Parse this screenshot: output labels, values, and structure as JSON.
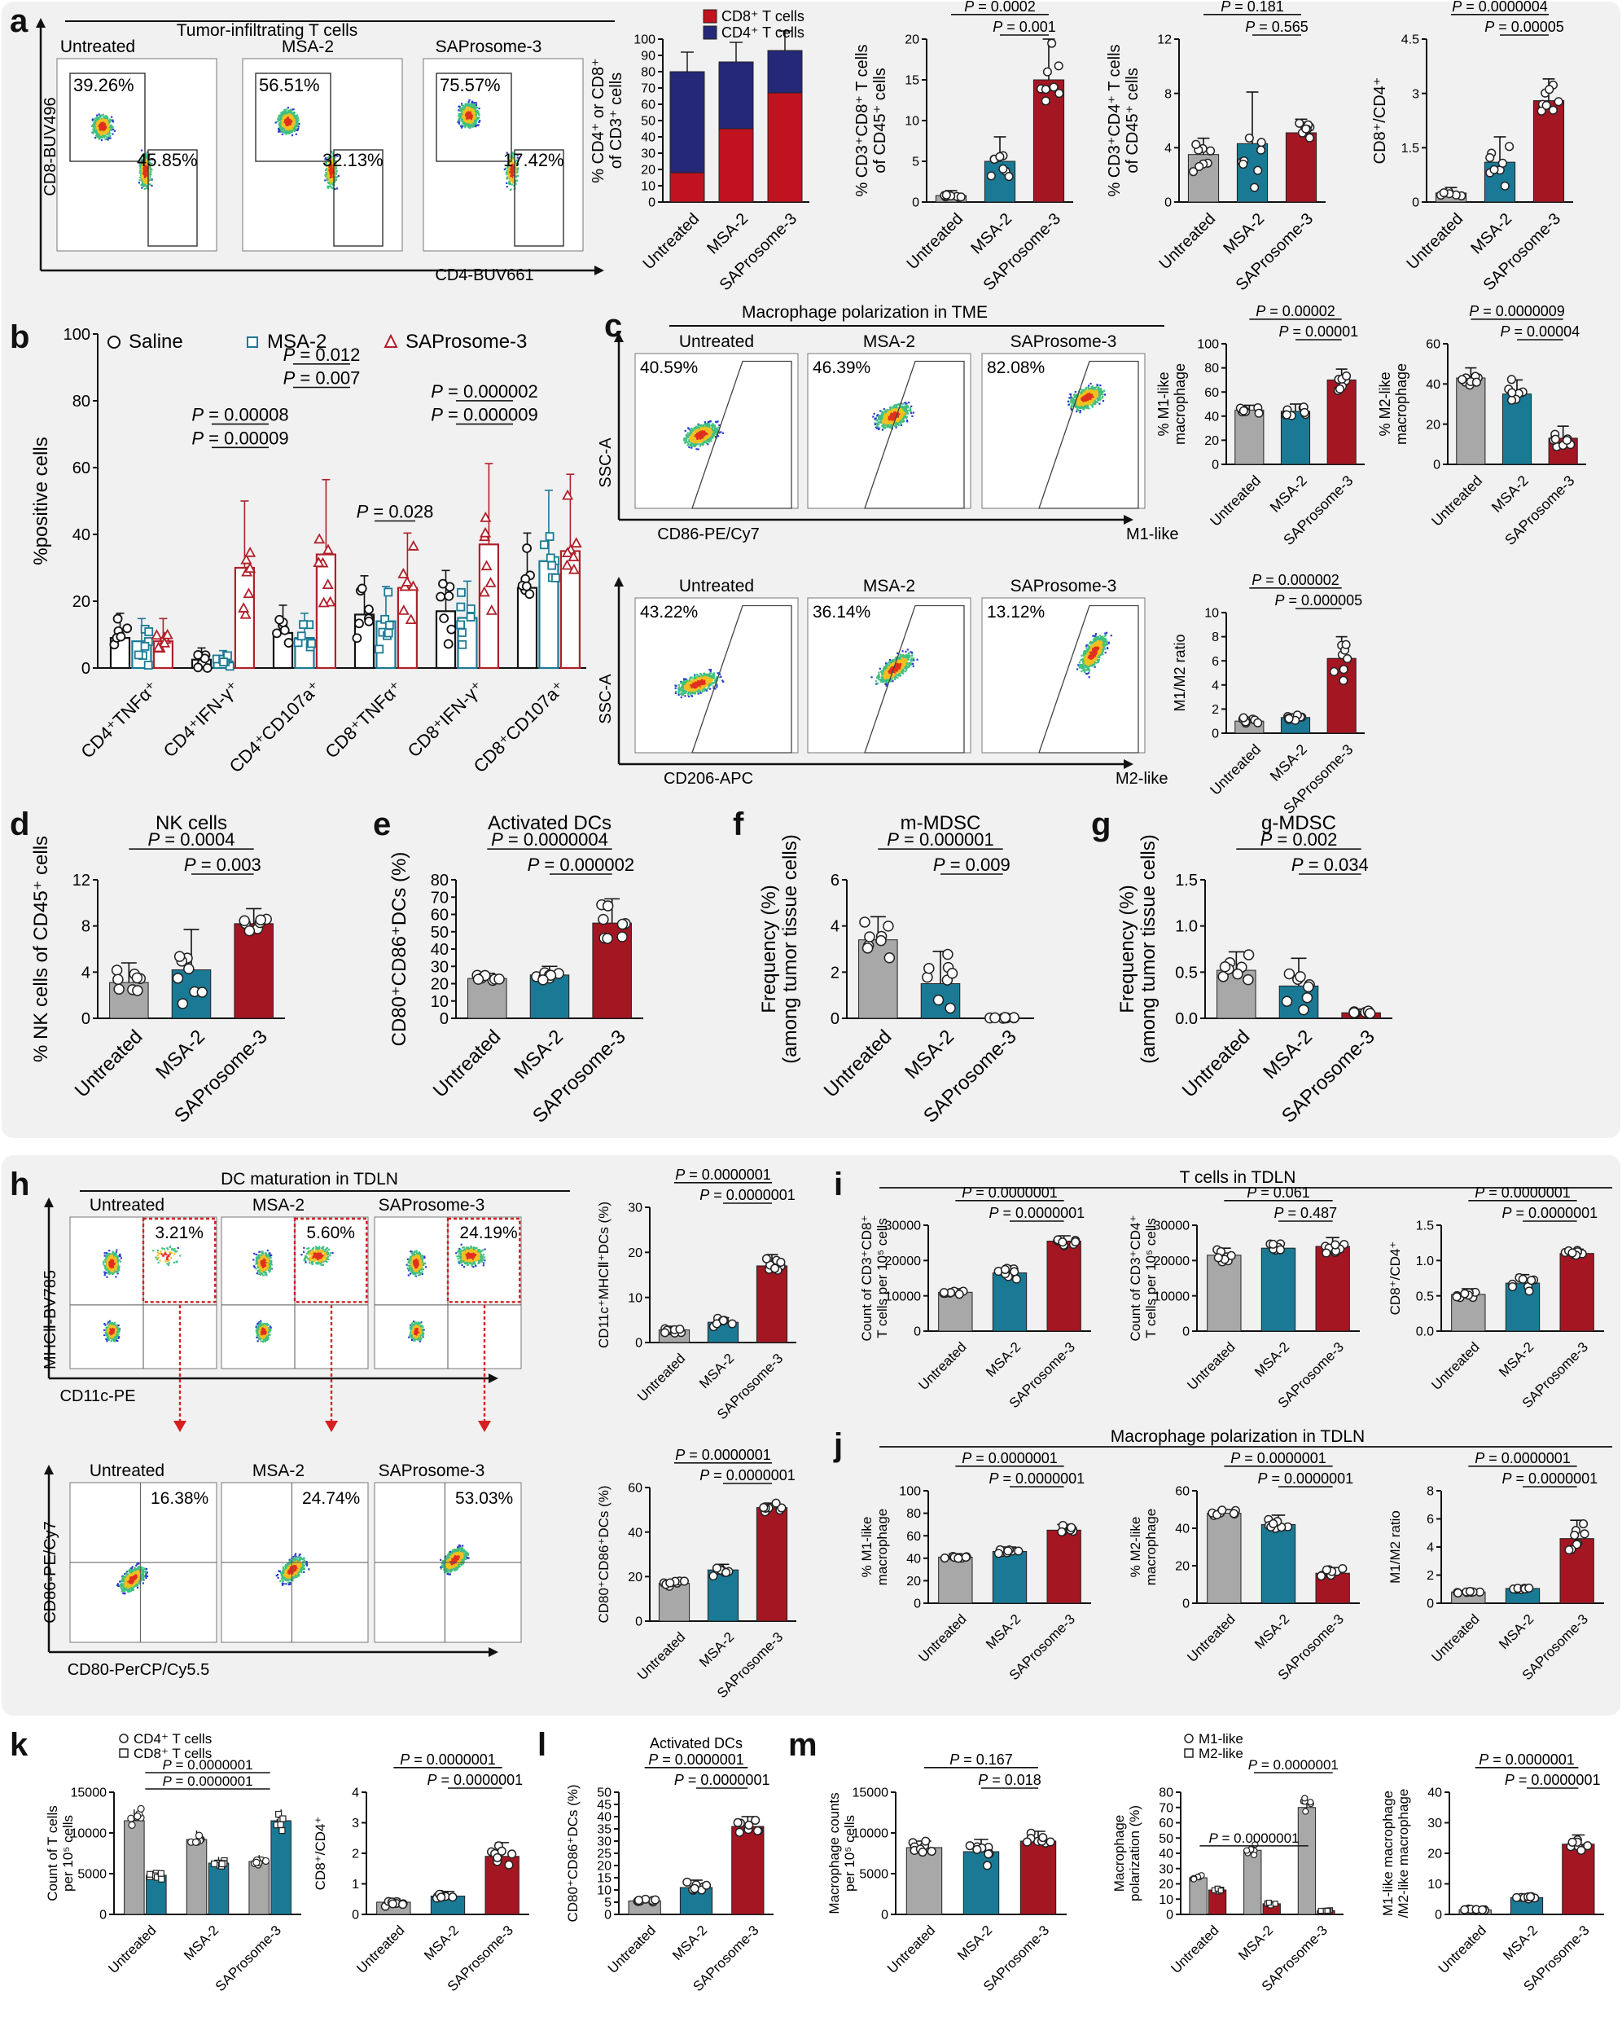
{
  "figure": {
    "letters": [
      "a",
      "b",
      "c",
      "d",
      "e",
      "f",
      "g",
      "h",
      "i",
      "j",
      "k",
      "l",
      "m"
    ]
  },
  "colors": {
    "untreated": "#a8a8a8",
    "msa2": "#1a7a96",
    "saprosome": "#a41622",
    "cd8_bar": "#c0121f",
    "cd4_bar": "#252777",
    "saline_pt": "#111111",
    "msa2_pt": "#1a7a96",
    "sap_pt": "#b0202a"
  },
  "groups": [
    "Untreated",
    "MSA-2",
    "SAProsome-3"
  ],
  "flow": {
    "a_title": "Tumor-infiltrating T cells",
    "a_xlabel": "CD4-BUV661",
    "a_ylabel": "CD8-BUV496",
    "a_plots": [
      {
        "name": "Untreated",
        "gate1": "39.26%",
        "gate2": "45.85%"
      },
      {
        "name": "MSA-2",
        "gate1": "56.51%",
        "gate2": "32.13%"
      },
      {
        "name": "SAProsome-3",
        "gate1": "75.57%",
        "gate2": "17.42%"
      }
    ],
    "c_title": "Macrophage polarization in TME",
    "c_top_xlabel": "CD86-PE/Cy7",
    "c_top_axis": "M1-like",
    "c_bot_xlabel": "CD206-APC",
    "c_bot_axis": "M2-like",
    "c_ylabel": "SSC-A",
    "c_top_plots": [
      {
        "name": "Untreated",
        "gate": "40.59%"
      },
      {
        "name": "MSA-2",
        "gate": "46.39%"
      },
      {
        "name": "SAProsome-3",
        "gate": "82.08%"
      }
    ],
    "c_bot_plots": [
      {
        "name": "Untreated",
        "gate": "43.22%"
      },
      {
        "name": "MSA-2",
        "gate": "36.14%"
      },
      {
        "name": "SAProsome-3",
        "gate": "13.12%"
      }
    ],
    "h_title": "DC maturation in TDLN",
    "h_top_xlabel": "CD11c-PE",
    "h_top_ylabel": "MHCⅡ-BV785",
    "h_bot_xlabel": "CD80-PerCP/Cy5.5",
    "h_bot_ylabel": "CD86-PE/Cy7",
    "h_top_plots": [
      {
        "name": "Untreated",
        "gate": "3.21%"
      },
      {
        "name": "MSA-2",
        "gate": "5.60%"
      },
      {
        "name": "SAProsome-3",
        "gate": "24.19%"
      }
    ],
    "h_bot_plots": [
      {
        "name": "Untreated",
        "gate": "16.38%"
      },
      {
        "name": "MSA-2",
        "gate": "24.74%"
      },
      {
        "name": "SAProsome-3",
        "gate": "53.03%"
      }
    ]
  },
  "chart_data": [
    {
      "id": "a_stack",
      "type": "bar",
      "title": "",
      "ylabel": "% CD4⁺ or CD8⁺ of CD3⁺ cells",
      "ylim": [
        0,
        100
      ],
      "yticks": [
        0,
        10,
        20,
        30,
        40,
        50,
        60,
        70,
        80,
        90,
        100
      ],
      "categories": [
        "Untreated",
        "MSA-2",
        "SAProsome-3"
      ],
      "series": [
        {
          "name": "CD8⁺ T cells",
          "values": [
            18,
            45,
            67
          ]
        },
        {
          "name": "CD4⁺ T cells",
          "values": [
            62,
            41,
            26
          ]
        }
      ],
      "legend": [
        "CD8⁺ T cells",
        "CD4⁺ T cells"
      ]
    },
    {
      "id": "a2",
      "type": "bar",
      "ylabel": "% CD3⁺CD8⁺ T cells of CD45⁺ cells",
      "ylim": [
        0,
        20
      ],
      "yticks": [
        0,
        5,
        10,
        15,
        20
      ],
      "categories": [
        "Untreated",
        "MSA-2",
        "SAProsome-3"
      ],
      "values": [
        0.8,
        5,
        15
      ],
      "errors": [
        0.6,
        3,
        5
      ],
      "annotations": [
        "P = 0.0002",
        "P = 0.001"
      ]
    },
    {
      "id": "a3",
      "type": "bar",
      "ylabel": "% CD3⁺CD4⁺ T cells of CD45⁺ cells",
      "ylim": [
        0,
        12
      ],
      "yticks": [
        0,
        4,
        8,
        12
      ],
      "categories": [
        "Untreated",
        "MSA-2",
        "SAProsome-3"
      ],
      "values": [
        3.5,
        4.3,
        5.1
      ],
      "errors": [
        1.2,
        3.8,
        1
      ],
      "annotations": [
        "P = 0.181",
        "P = 0.565"
      ]
    },
    {
      "id": "a4",
      "type": "bar",
      "ylabel": "CD8⁺/CD4⁺",
      "ylim": [
        0,
        4.5
      ],
      "yticks": [
        0.0,
        1.5,
        3.0,
        4.5
      ],
      "categories": [
        "Untreated",
        "MSA-2",
        "SAProsome-3"
      ],
      "values": [
        0.25,
        1.1,
        2.8
      ],
      "errors": [
        0.15,
        0.7,
        0.6
      ],
      "annotations": [
        "P = 0.0000004",
        "P = 0.00005"
      ]
    },
    {
      "id": "b",
      "type": "bar",
      "ylabel": "%positive cells",
      "ylim": [
        0,
        100
      ],
      "yticks": [
        0,
        20,
        40,
        60,
        80,
        100
      ],
      "categories": [
        "CD4⁺TNFα⁺",
        "CD4⁺IFN-γ⁺",
        "CD4⁺CD107a⁺",
        "CD8⁺TNFα⁺",
        "CD8⁺IFN-γ⁺",
        "CD8⁺CD107a⁺"
      ],
      "series": [
        {
          "name": "Saline",
          "values": [
            9,
            2.5,
            10.5,
            16,
            17,
            24
          ]
        },
        {
          "name": "MSA-2",
          "values": [
            8,
            2,
            9,
            14,
            15,
            32
          ]
        },
        {
          "name": "SAProsome-3",
          "values": [
            8,
            30,
            34,
            24,
            37,
            35
          ]
        }
      ],
      "annotations": [
        "P = 0.00008",
        "P = 0.00009",
        "P = 0.012",
        "P = 0.007",
        "P = 0.028",
        "P = 0.000002",
        "P = 0.000009"
      ]
    },
    {
      "id": "c1",
      "type": "bar",
      "ylabel": "% M1-like macrophage",
      "ylim": [
        0,
        100
      ],
      "yticks": [
        0,
        20,
        40,
        60,
        80,
        100
      ],
      "categories": [
        "Untreated",
        "MSA-2",
        "SAProsome-3"
      ],
      "values": [
        45,
        44,
        70
      ],
      "errors": [
        4,
        6,
        9
      ],
      "annotations": [
        "P = 0.00002",
        "P = 0.00001"
      ]
    },
    {
      "id": "c2",
      "type": "bar",
      "ylabel": "% M2-like macrophage",
      "ylim": [
        0,
        60
      ],
      "yticks": [
        0,
        20,
        40,
        60
      ],
      "categories": [
        "Untreated",
        "MSA-2",
        "SAProsome-3"
      ],
      "values": [
        43,
        35,
        13
      ],
      "errors": [
        5,
        7,
        6
      ],
      "annotations": [
        "P = 0.0000009",
        "P = 0.00004"
      ]
    },
    {
      "id": "c3",
      "type": "bar",
      "ylabel": "M1/M2 ratio",
      "ylim": [
        0,
        10
      ],
      "yticks": [
        0,
        2,
        4,
        6,
        8,
        10
      ],
      "categories": [
        "Untreated",
        "MSA-2",
        "SAProsome-3"
      ],
      "values": [
        1,
        1.3,
        6.2
      ],
      "errors": [
        0.3,
        0.3,
        1.8
      ],
      "annotations": [
        "P = 0.000002",
        "P = 0.000005"
      ]
    },
    {
      "id": "d",
      "type": "bar",
      "title": "NK cells",
      "ylabel": "% NK cells of CD45⁺ cells",
      "ylim": [
        0,
        12
      ],
      "yticks": [
        0,
        4,
        8,
        12
      ],
      "categories": [
        "Untreated",
        "MSA-2",
        "SAProsome-3"
      ],
      "values": [
        3.1,
        4.2,
        8.2
      ],
      "errors": [
        1.7,
        3.5,
        1.3
      ],
      "annotations": [
        "P = 0.0004",
        "P = 0.003"
      ]
    },
    {
      "id": "e",
      "type": "bar",
      "title": "Activated DCs",
      "ylabel": "CD80⁺CD86⁺DCs (%)",
      "ylim": [
        0,
        80
      ],
      "yticks": [
        0,
        10,
        20,
        30,
        40,
        50,
        60,
        70,
        80
      ],
      "categories": [
        "Untreated",
        "MSA-2",
        "SAProsome-3"
      ],
      "values": [
        23,
        25,
        55
      ],
      "errors": [
        3,
        5,
        14
      ],
      "annotations": [
        "P = 0.0000004",
        "P = 0.000002"
      ]
    },
    {
      "id": "f",
      "type": "bar",
      "title": "m-MDSC",
      "ylabel": "Frequency (%) (among tumor tissue cells)",
      "ylim": [
        0,
        6
      ],
      "yticks": [
        0,
        2,
        4,
        6
      ],
      "categories": [
        "Untreated",
        "MSA-2",
        "SAProsome-3"
      ],
      "values": [
        3.4,
        1.5,
        0.02
      ],
      "errors": [
        1,
        1.4,
        0.02
      ],
      "annotations": [
        "P = 0.000001",
        "P = 0.009"
      ]
    },
    {
      "id": "g",
      "type": "bar",
      "title": "g-MDSC",
      "ylabel": "Frequency (%) (among tumor tissue cells)",
      "ylim": [
        0,
        1.5
      ],
      "yticks": [
        0.0,
        0.5,
        1.0,
        1.5
      ],
      "categories": [
        "Untreated",
        "MSA-2",
        "SAProsome-3"
      ],
      "values": [
        0.52,
        0.35,
        0.06
      ],
      "errors": [
        0.2,
        0.3,
        0.04
      ],
      "annotations": [
        "P = 0.002",
        "P = 0.034"
      ]
    },
    {
      "id": "h1",
      "type": "bar",
      "ylabel": "CD11c⁺MHCⅡ⁺DCs (%)",
      "ylim": [
        0,
        30
      ],
      "yticks": [
        0,
        10,
        20,
        30
      ],
      "categories": [
        "Untreated",
        "MSA-2",
        "SAProsome-3"
      ],
      "values": [
        2.8,
        4.5,
        17
      ],
      "errors": [
        0.8,
        1,
        2.5
      ],
      "annotations": [
        "P = 0.0000001",
        "P = 0.0000001"
      ]
    },
    {
      "id": "h2",
      "type": "bar",
      "ylabel": "CD80⁺CD86⁺DCs (%)",
      "ylim": [
        0,
        60
      ],
      "yticks": [
        0,
        20,
        40,
        60
      ],
      "categories": [
        "Untreated",
        "MSA-2",
        "SAProsome-3"
      ],
      "values": [
        17,
        23,
        51
      ],
      "errors": [
        1.5,
        2.5,
        2
      ],
      "annotations": [
        "P = 0.0000001",
        "P = 0.0000001"
      ]
    },
    {
      "id": "i1",
      "type": "bar",
      "title": "T cells in TDLN",
      "ylabel": "Count of CD3⁺CD8⁺ T cells per 10⁵ cells",
      "ylim": [
        0,
        30000
      ],
      "yticks": [
        0,
        10000,
        20000,
        30000
      ],
      "categories": [
        "Untreated",
        "MSA-2",
        "SAProsome-3"
      ],
      "values": [
        11000,
        16500,
        25500
      ],
      "errors": [
        1000,
        2000,
        1500
      ],
      "annotations": [
        "P = 0.0000001",
        "P = 0.0000001"
      ]
    },
    {
      "id": "i2",
      "type": "bar",
      "ylabel": "Count of CD3⁺CD4⁺ T cells per 10⁵ cells",
      "ylim": [
        0,
        30000
      ],
      "yticks": [
        0,
        10000,
        20000,
        30000
      ],
      "categories": [
        "Untreated",
        "MSA-2",
        "SAProsome-3"
      ],
      "values": [
        21500,
        23500,
        24000
      ],
      "errors": [
        2000,
        1500,
        2500
      ],
      "annotations": [
        "P = 0.061",
        "P = 0.487"
      ]
    },
    {
      "id": "i3",
      "type": "bar",
      "ylabel": "CD8⁺/CD4⁺",
      "ylim": [
        0,
        1.5
      ],
      "yticks": [
        0.0,
        0.5,
        1.0,
        1.5
      ],
      "categories": [
        "Untreated",
        "MSA-2",
        "SAProsome-3"
      ],
      "values": [
        0.52,
        0.68,
        1.1
      ],
      "errors": [
        0.08,
        0.12,
        0.06
      ],
      "annotations": [
        "P = 0.0000001",
        "P = 0.0000001"
      ]
    },
    {
      "id": "j1",
      "type": "bar",
      "title": "Macrophage polarization in TDLN",
      "ylabel": "% M1-like macrophage",
      "ylim": [
        0,
        100
      ],
      "yticks": [
        0,
        20,
        40,
        60,
        80,
        100
      ],
      "categories": [
        "Untreated",
        "MSA-2",
        "SAProsome-3"
      ],
      "values": [
        41,
        46,
        65
      ],
      "errors": [
        3,
        4,
        5
      ],
      "annotations": [
        "P = 0.0000001",
        "P = 0.0000001"
      ]
    },
    {
      "id": "j2",
      "type": "bar",
      "ylabel": "% M2-like macrophage",
      "ylim": [
        0,
        60
      ],
      "yticks": [
        0,
        20,
        40,
        60
      ],
      "categories": [
        "Untreated",
        "MSA-2",
        "SAProsome-3"
      ],
      "values": [
        48,
        42,
        16
      ],
      "errors": [
        2,
        5,
        3
      ],
      "annotations": [
        "P = 0.0000001",
        "P = 0.0000001"
      ]
    },
    {
      "id": "j3",
      "type": "bar",
      "ylabel": "M1/M2 ratio",
      "ylim": [
        0,
        8
      ],
      "yticks": [
        0,
        2,
        4,
        6,
        8
      ],
      "categories": [
        "Untreated",
        "MSA-2",
        "SAProsome-3"
      ],
      "values": [
        0.8,
        1.05,
        4.6
      ],
      "errors": [
        0.1,
        0.1,
        1.3
      ],
      "annotations": [
        "P = 0.0000001",
        "P = 0.0000001"
      ]
    },
    {
      "id": "k1",
      "type": "bar",
      "ylabel": "Count of T cells per 10⁵ cells",
      "ylim": [
        0,
        15000
      ],
      "yticks": [
        0,
        5000,
        10000,
        15000
      ],
      "categories": [
        "Untreated",
        "MSA-2",
        "SAProsome-3"
      ],
      "series": [
        {
          "name": "CD4⁺ T cells",
          "values": [
            11500,
            9200,
            6500
          ]
        },
        {
          "name": "CD8⁺ T cells",
          "values": [
            4800,
            6300,
            11500
          ]
        }
      ],
      "annotations": [
        "P = 0.0000001",
        "P = 0.0000001"
      ]
    },
    {
      "id": "k2",
      "type": "bar",
      "ylabel": "CD8⁺/CD4⁺",
      "ylim": [
        0,
        4
      ],
      "yticks": [
        0,
        1,
        2,
        3,
        4
      ],
      "categories": [
        "Untreated",
        "MSA-2",
        "SAProsome-3"
      ],
      "values": [
        0.4,
        0.6,
        1.9
      ],
      "errors": [
        0.12,
        0.15,
        0.45
      ],
      "annotations": [
        "P = 0.0000001",
        "P = 0.0000001"
      ]
    },
    {
      "id": "l",
      "type": "bar",
      "title": "Activated DCs",
      "ylabel": "CD80⁺CD86⁺DCs (%)",
      "ylim": [
        0,
        50
      ],
      "yticks": [
        0,
        5,
        10,
        15,
        20,
        25,
        30,
        35,
        40,
        45,
        50
      ],
      "categories": [
        "Untreated",
        "MSA-2",
        "SAProsome-3"
      ],
      "values": [
        5.5,
        11,
        36
      ],
      "errors": [
        1,
        3,
        4
      ],
      "annotations": [
        "P = 0.0000001",
        "P = 0.0000001"
      ]
    },
    {
      "id": "m1",
      "type": "bar",
      "ylabel": "Macrophage counts per 10⁵ cells",
      "ylim": [
        0,
        15000
      ],
      "yticks": [
        0,
        5000,
        10000,
        15000
      ],
      "categories": [
        "Untreated",
        "MSA-2",
        "SAProsome-3"
      ],
      "values": [
        8200,
        7700,
        9000
      ],
      "errors": [
        800,
        1500,
        1200
      ],
      "annotations": [
        "P = 0.167",
        "P = 0.018"
      ]
    },
    {
      "id": "m2",
      "type": "bar",
      "ylabel": "Macrophage polarization (%)",
      "ylim": [
        0,
        80
      ],
      "yticks": [
        0,
        10,
        20,
        30,
        40,
        50,
        60,
        70,
        80
      ],
      "categories": [
        "Untreated",
        "MSA-2",
        "SAProsome-3"
      ],
      "series": [
        {
          "name": "M1-like",
          "values": [
            24,
            42,
            70
          ]
        },
        {
          "name": "M2-like",
          "values": [
            16,
            7,
            2.5
          ]
        }
      ],
      "annotations": [
        "P = 0.0000001",
        "P = 0.0000001"
      ]
    },
    {
      "id": "m3",
      "type": "bar",
      "ylabel": "M1-like macrophage /M2-like macrophage",
      "ylim": [
        0,
        40
      ],
      "yticks": [
        0,
        10,
        20,
        30,
        40
      ],
      "categories": [
        "Untreated",
        "MSA-2",
        "SAProsome-3"
      ],
      "values": [
        1.5,
        5.5,
        23
      ],
      "errors": [
        0.4,
        1,
        3
      ],
      "annotations": [
        "P = 0.0000001",
        "P = 0.0000001"
      ]
    }
  ]
}
